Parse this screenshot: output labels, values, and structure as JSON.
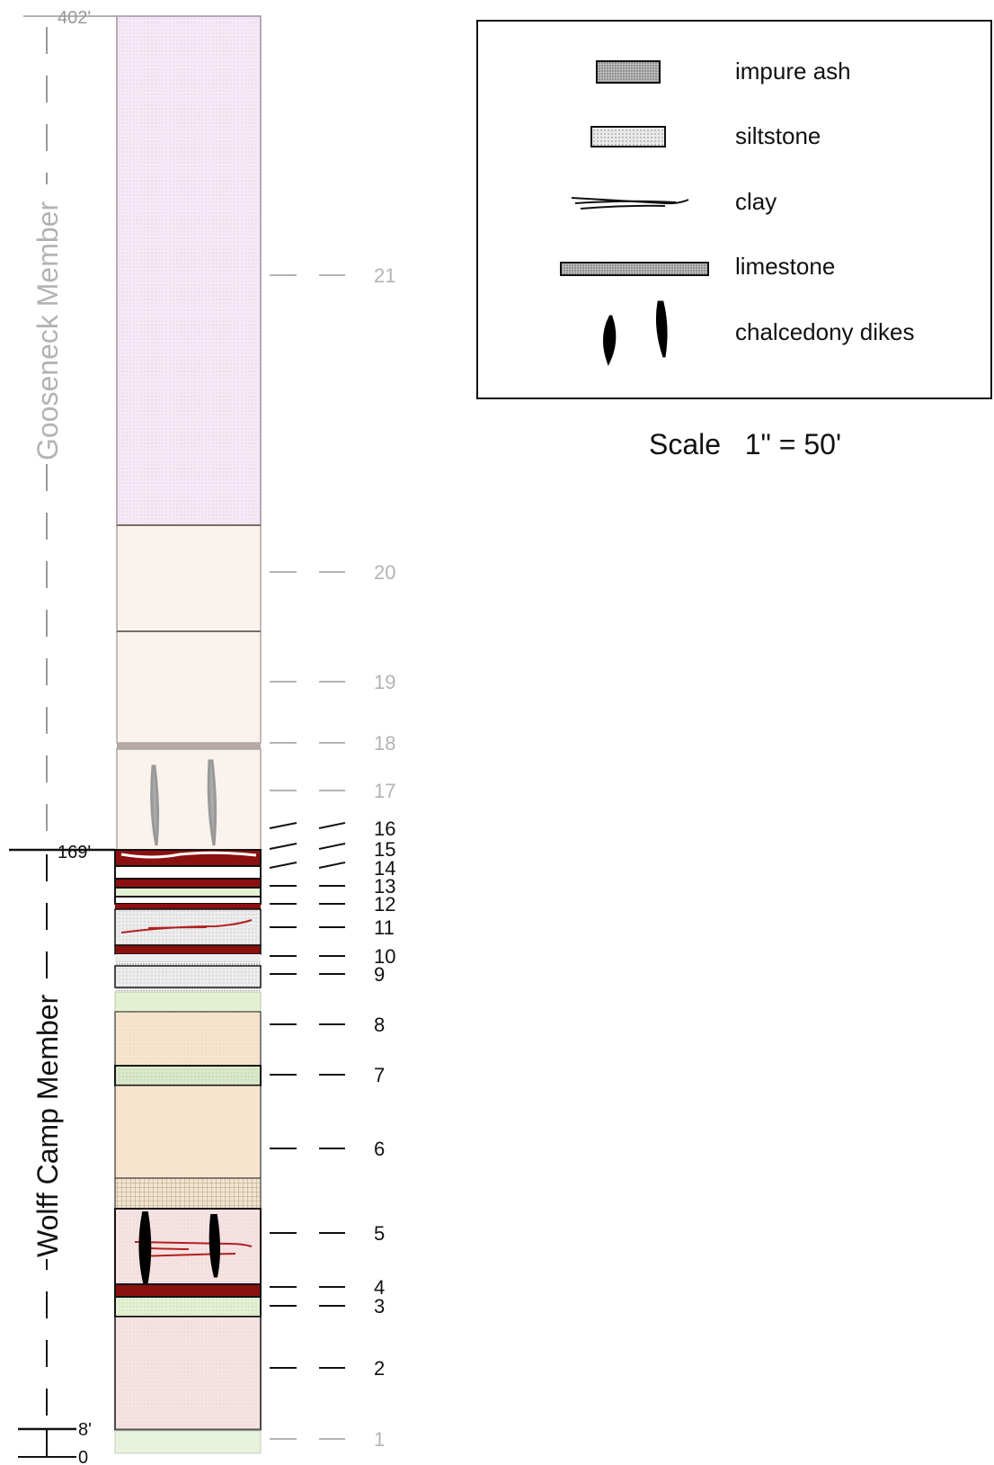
{
  "title": "",
  "column": {
    "members": [
      {
        "name": "Gooseneck Member",
        "color": "#b3b3b3"
      },
      {
        "name": "Wolff Camp Member",
        "color": "#111111"
      }
    ],
    "depth_marks": [
      "402'",
      "169'",
      "8'",
      "0"
    ],
    "layers": [
      {
        "number": "21",
        "tone": "grey"
      },
      {
        "number": "20",
        "tone": "grey"
      },
      {
        "number": "19",
        "tone": "grey"
      },
      {
        "number": "18",
        "tone": "grey"
      },
      {
        "number": "17",
        "tone": "grey"
      },
      {
        "number": "16",
        "tone": "black"
      },
      {
        "number": "15",
        "tone": "black"
      },
      {
        "number": "14",
        "tone": "black"
      },
      {
        "number": "13",
        "tone": "black"
      },
      {
        "number": "12",
        "tone": "black"
      },
      {
        "number": "11",
        "tone": "black"
      },
      {
        "number": "10",
        "tone": "black"
      },
      {
        "number": "9",
        "tone": "black"
      },
      {
        "number": "8",
        "tone": "black"
      },
      {
        "number": "7",
        "tone": "black"
      },
      {
        "number": "6",
        "tone": "black"
      },
      {
        "number": "5",
        "tone": "black"
      },
      {
        "number": "4",
        "tone": "black"
      },
      {
        "number": "3",
        "tone": "black"
      },
      {
        "number": "2",
        "tone": "black"
      },
      {
        "number": "1",
        "tone": "grey"
      }
    ]
  },
  "legend": {
    "items": [
      {
        "label": "impure ash",
        "icon": "impure-ash-icon"
      },
      {
        "label": "siltstone",
        "icon": "siltstone-icon"
      },
      {
        "label": "clay",
        "icon": "clay-icon"
      },
      {
        "label": "limestone",
        "icon": "limestone-icon"
      },
      {
        "label": "chalcedony dikes",
        "icon": "chalcedony-dikes-icon"
      }
    ]
  },
  "scale": "Scale   1\" = 50'",
  "colors": {
    "red_bed": "#8b1010",
    "pink": "#f7e2e2",
    "green": "#e3f0d2",
    "orange": "#f8e4cc",
    "lavender": "#f6e8f6",
    "cream": "#faf2ec",
    "grey_fill": "#ececec"
  }
}
